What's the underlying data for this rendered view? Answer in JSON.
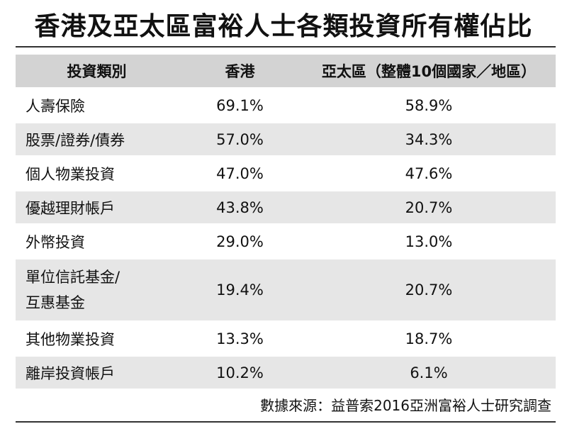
{
  "title": "香港及亞太區富裕人士各類投資所有權佔比",
  "table": {
    "headers": [
      "投資類別",
      "香港",
      "亞太區（整體10個國家／地區）"
    ],
    "rows": [
      {
        "category": "人壽保險",
        "hk": "69.1%",
        "apac": "58.9%"
      },
      {
        "category": "股票/證券/債券",
        "hk": "57.0%",
        "apac": "34.3%"
      },
      {
        "category": "個人物業投資",
        "hk": "47.0%",
        "apac": "47.6%"
      },
      {
        "category": "優越理財帳戶",
        "hk": "43.8%",
        "apac": "20.7%"
      },
      {
        "category": "外幣投資",
        "hk": "29.0%",
        "apac": "13.0%"
      },
      {
        "category_line1": "單位信託基金/",
        "category_line2": "互惠基金",
        "hk": "19.4%",
        "apac": "20.7%"
      },
      {
        "category": "其他物業投資",
        "hk": "13.3%",
        "apac": "18.7%"
      },
      {
        "category": "離岸投資帳戶",
        "hk": "10.2%",
        "apac": "6.1%"
      }
    ]
  },
  "source": "數據來源：益普索2016亞洲富裕人士研究調查"
}
